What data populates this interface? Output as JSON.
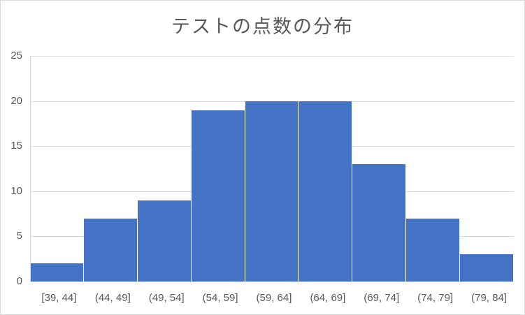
{
  "chart_data": {
    "type": "bar",
    "title": "テストの点数の分布",
    "xlabel": "",
    "ylabel": "",
    "categories": [
      "[39, 44]",
      "(44, 49]",
      "(49, 54]",
      "(54, 59]",
      "(59, 64]",
      "(64, 69]",
      "(69, 74]",
      "(74, 79]",
      "(79, 84]"
    ],
    "values": [
      2,
      7,
      9,
      19,
      20,
      20,
      13,
      7,
      3
    ],
    "ylim": [
      0,
      25
    ],
    "yticks": [
      "0",
      "5",
      "10",
      "15",
      "20",
      "25"
    ],
    "grid": true,
    "legend": "none",
    "bar_color": "#4472c4",
    "histogram": true
  }
}
